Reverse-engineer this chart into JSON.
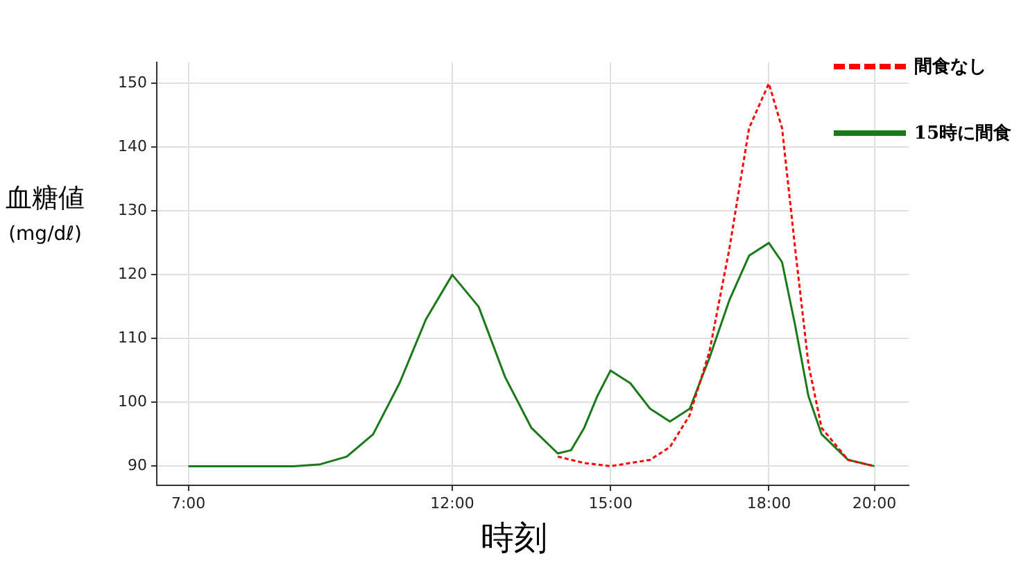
{
  "chart_data": {
    "type": "line",
    "xlabel": "時刻",
    "ylabel": "血糖値\n(mg/dℓ)",
    "xlim": [
      6.4,
      20.65
    ],
    "xticks": [
      {
        "value": 7,
        "label": "7:00"
      },
      {
        "value": 12,
        "label": "12:00"
      },
      {
        "value": 15,
        "label": "15:00"
      },
      {
        "value": 18,
        "label": "18:00"
      },
      {
        "value": 20,
        "label": "20:00"
      }
    ],
    "ylim": [
      87,
      153.3
    ],
    "yticks": [
      90,
      100,
      110,
      120,
      130,
      140,
      150
    ],
    "grid": true,
    "legend": "top right",
    "marker": "none",
    "series": [
      {
        "name": "間食なし",
        "color": "#ff0000",
        "line_style": "dashed",
        "x": [
          14,
          14.5,
          15,
          15.75,
          16.125,
          16.5,
          16.875,
          17.25,
          17.625,
          18,
          18.25,
          18.5,
          18.75,
          19,
          19.5,
          20
        ],
        "values": [
          91.5,
          90.5,
          90,
          91,
          93,
          98,
          108,
          124,
          143,
          150,
          143,
          124,
          106,
          96,
          91,
          90
        ]
      },
      {
        "name": "15時に間食",
        "color": "#1a7a1a",
        "line_style": "solid",
        "x": [
          7,
          8,
          9,
          9.5,
          10,
          10.5,
          11,
          11.5,
          12,
          12.5,
          13,
          13.5,
          14,
          14.25,
          14.5,
          14.75,
          15,
          15.375,
          15.75,
          16.125,
          16.5,
          16.875,
          17.25,
          17.625,
          18,
          18.25,
          18.5,
          18.75,
          19,
          19.5,
          20
        ],
        "values": [
          90,
          90,
          90,
          90.3,
          91.5,
          95,
          103,
          113,
          120,
          115,
          104,
          96,
          92,
          92.5,
          96,
          101,
          105,
          103,
          99,
          97,
          99,
          107,
          116,
          123,
          125,
          122,
          112,
          101,
          95,
          91,
          90
        ]
      }
    ]
  }
}
